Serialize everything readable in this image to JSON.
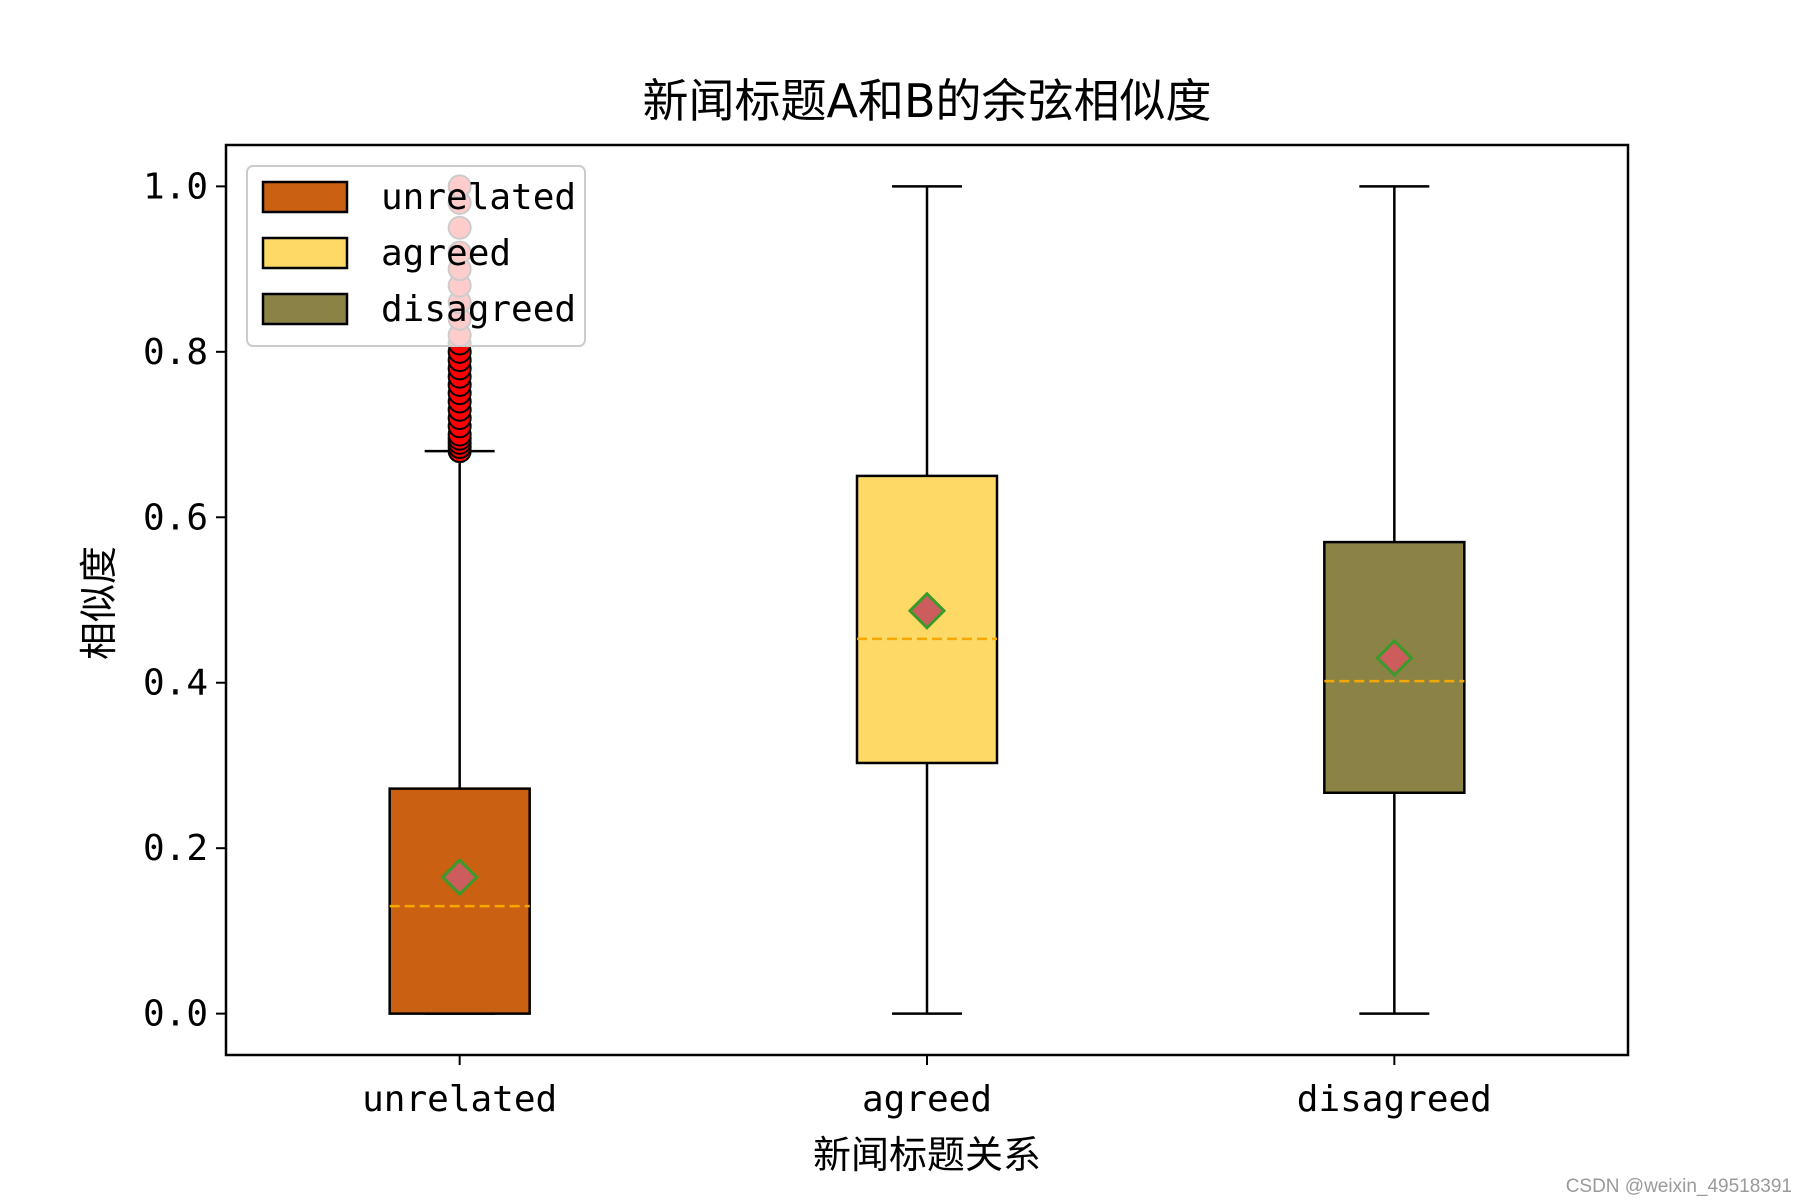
{
  "chart_data": {
    "type": "box",
    "title": "新闻标题A和B的余弦相似度",
    "xlabel": "新闻标题关系",
    "ylabel": "相似度",
    "ylim": [
      -0.05,
      1.05
    ],
    "yticks": [
      0.0,
      0.2,
      0.4,
      0.6,
      0.8,
      1.0
    ],
    "ytick_labels": [
      "0.0",
      "0.2",
      "0.4",
      "0.6",
      "0.8",
      "1.0"
    ],
    "grid": false,
    "legend_position": "top-left",
    "categories": [
      "unrelated",
      "agreed",
      "disagreed"
    ],
    "series": [
      {
        "name": "unrelated",
        "color": "#c96012",
        "whisker_low": 0.0,
        "q1": 0.0,
        "median": 0.13,
        "mean": 0.165,
        "q3": 0.272,
        "whisker_high": 0.68,
        "outliers": [
          0.68,
          0.685,
          0.69,
          0.695,
          0.7,
          0.71,
          0.72,
          0.73,
          0.74,
          0.75,
          0.76,
          0.77,
          0.78,
          0.79,
          0.8,
          0.81,
          0.82,
          0.84,
          0.86,
          0.88,
          0.9,
          0.92,
          0.95,
          0.98,
          1.0
        ]
      },
      {
        "name": "agreed",
        "color": "#ffd966",
        "whisker_low": 0.0,
        "q1": 0.303,
        "median": 0.453,
        "mean": 0.487,
        "q3": 0.65,
        "whisker_high": 1.0,
        "outliers": []
      },
      {
        "name": "disagreed",
        "color": "#8b8345",
        "whisker_low": 0.0,
        "q1": 0.267,
        "median": 0.402,
        "mean": 0.43,
        "q3": 0.57,
        "whisker_high": 1.0,
        "outliers": []
      }
    ],
    "median_style": {
      "color": "#f5a800",
      "dash": "dashed"
    },
    "mean_marker": {
      "shape": "diamond",
      "fill": "#cd5c5c",
      "edge": "#3a9a2a"
    },
    "outlier_marker": {
      "fill": "#ff0000",
      "edge": "#000000"
    }
  },
  "watermark": "CSDN @weixin_49518391"
}
